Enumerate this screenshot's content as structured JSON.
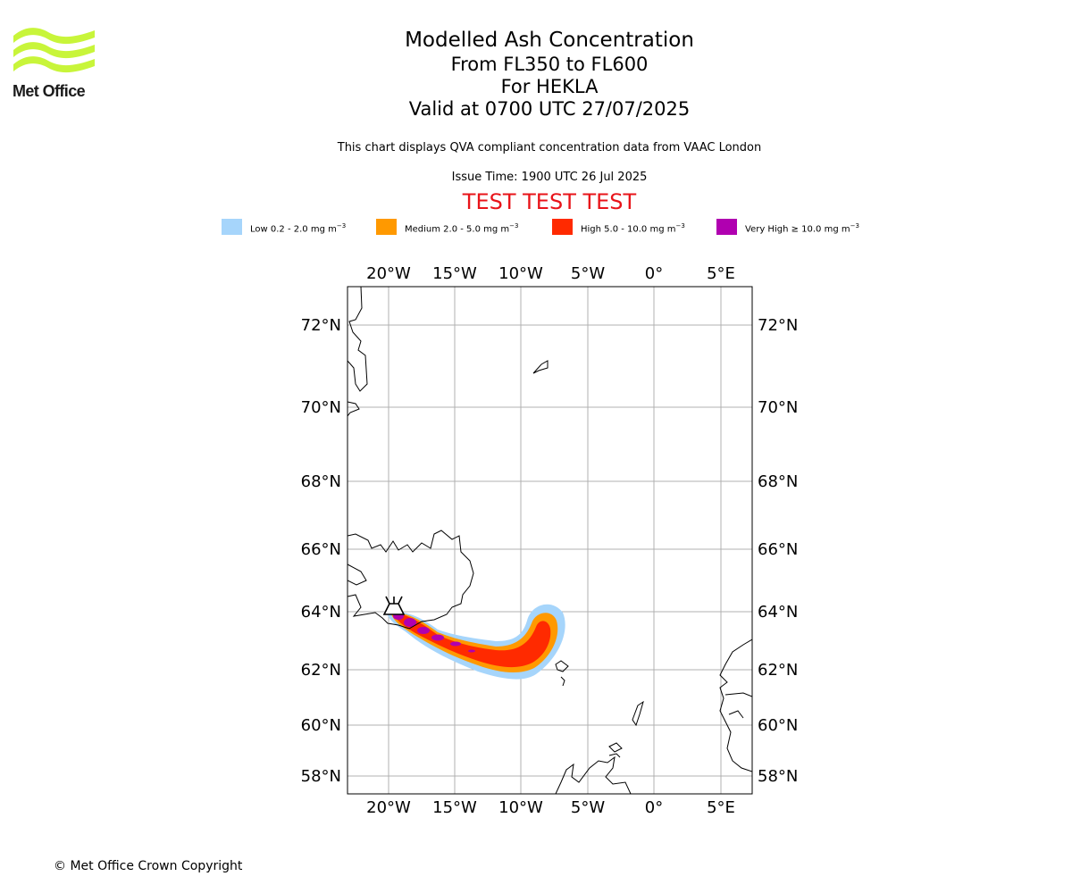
{
  "logo": {
    "brand": "Met Office"
  },
  "title": {
    "line1": "Modelled Ash Concentration",
    "line2": "From FL350 to FL600",
    "line3": "For HEKLA",
    "line4": "Valid at 0700 UTC 27/07/2025"
  },
  "subtitle": "This chart displays QVA compliant concentration data from VAAC London",
  "issue_time": "Issue Time: 1900 UTC 26 Jul 2025",
  "test_banner": "TEST TEST TEST",
  "legend": [
    {
      "label": "Low 0.2 - 2.0 mg m",
      "color": "#a6d5fb"
    },
    {
      "label": "Medium 2.0 - 5.0 mg m",
      "color": "#ff9900"
    },
    {
      "label": "High 5.0 - 10.0 mg m",
      "color": "#ff2a00"
    },
    {
      "label": "Very High ≥ 10.0 mg m",
      "color": "#b000b0"
    }
  ],
  "legend_unit_exp": "−3",
  "map": {
    "lon_labels": [
      "20°W",
      "15°W",
      "10°W",
      "5°W",
      "0°",
      "5°E"
    ],
    "lat_labels": [
      "72°N",
      "70°N",
      "68°N",
      "66°N",
      "64°N",
      "62°N",
      "60°N",
      "58°N"
    ],
    "volcano_icon": "volcano-icon"
  },
  "footer": "© Met Office Crown Copyright"
}
